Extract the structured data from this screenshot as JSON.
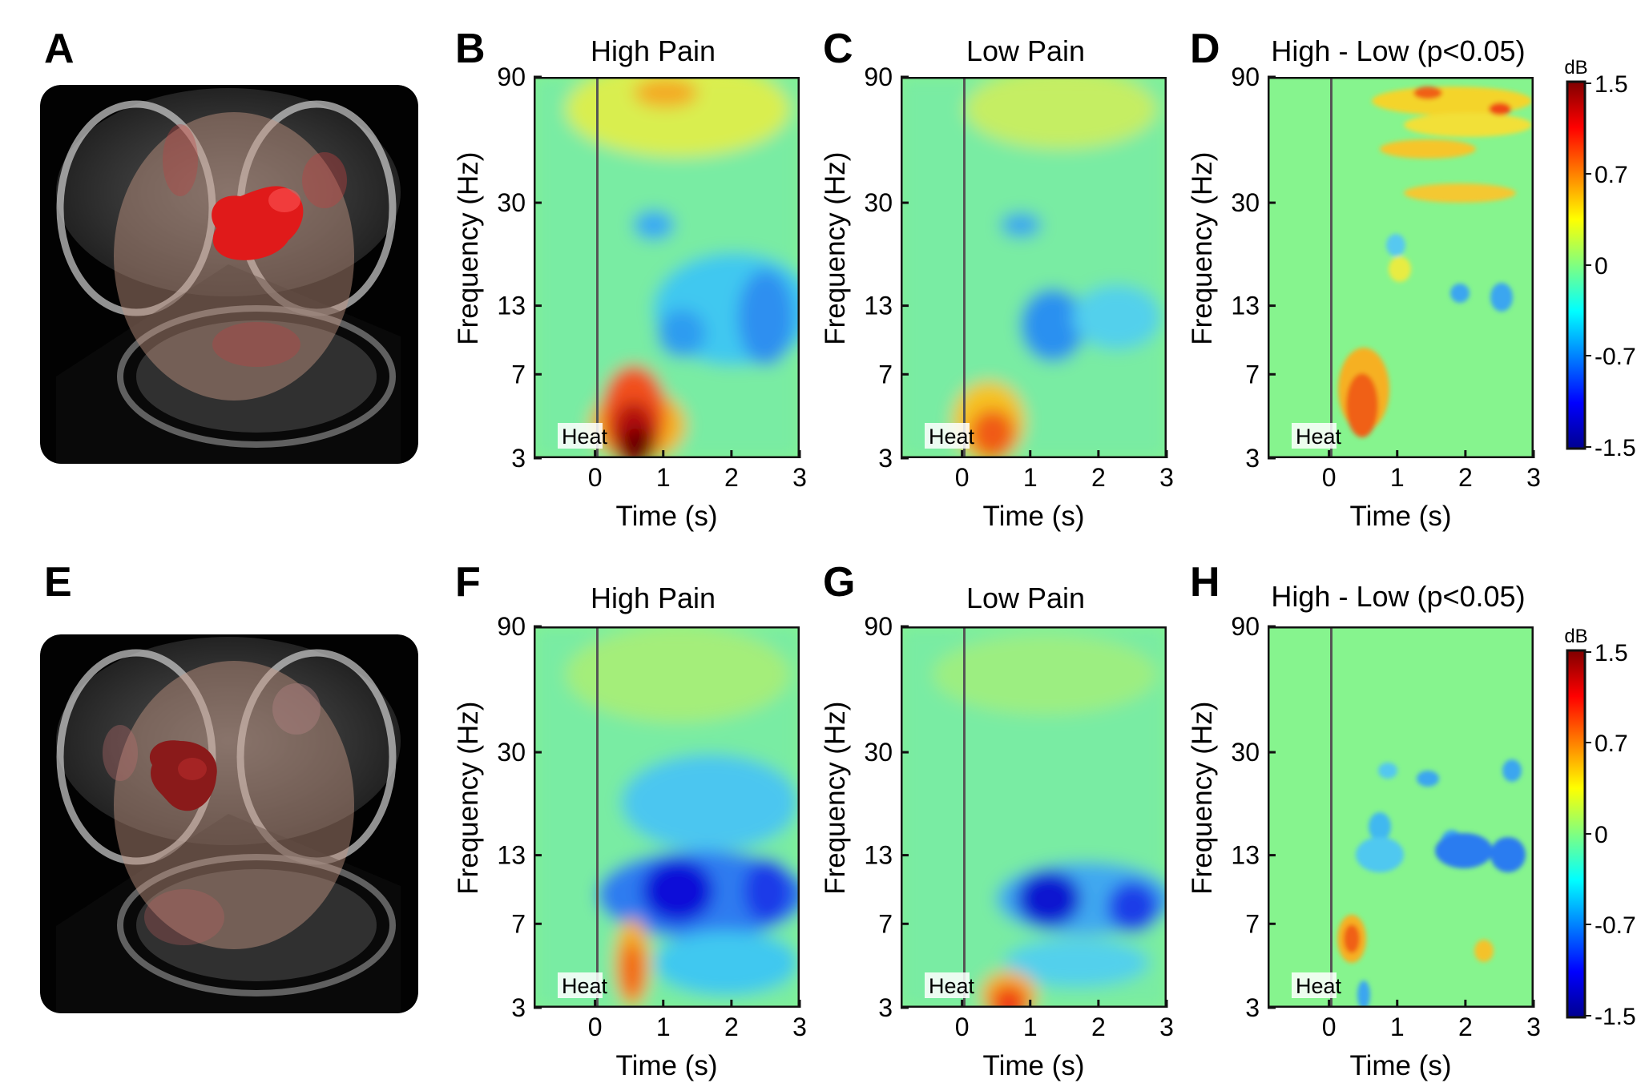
{
  "figure": {
    "rows": [
      {
        "brain_label": "A",
        "panels": [
          {
            "label": "B",
            "title": "High Pain",
            "type": "single"
          },
          {
            "label": "C",
            "title": "Low Pain",
            "type": "single"
          },
          {
            "label": "D",
            "title": "High - Low (p<0.05)",
            "type": "contrast"
          }
        ],
        "colorbar": {
          "unit": "dB",
          "ticks": [
            "1.5",
            "0.7",
            "0",
            "-0.7",
            "-1.5"
          ]
        }
      },
      {
        "brain_label": "E",
        "panels": [
          {
            "label": "F",
            "title": "High Pain",
            "type": "single"
          },
          {
            "label": "G",
            "title": "Low Pain",
            "type": "single"
          },
          {
            "label": "H",
            "title": "High - Low (p<0.05)",
            "type": "contrast"
          }
        ],
        "colorbar": {
          "unit": "dB",
          "ticks": [
            "1.5",
            "0.7",
            "0",
            "-0.7",
            "-1.5"
          ]
        }
      }
    ],
    "axes": {
      "xlabel": "Time (s)",
      "ylabel": "Frequency (Hz)",
      "xticks": [
        "0",
        "1",
        "2",
        "3"
      ],
      "yticks": [
        "90",
        "30",
        "13",
        "7",
        "3"
      ],
      "event_marker": "Heat"
    },
    "colormap": "jet"
  },
  "chart_data": [
    {
      "type": "heatmap",
      "title": "High Pain",
      "panel": "B",
      "xlabel": "Time (s)",
      "ylabel": "Frequency (Hz)",
      "xlim": [
        -0.9,
        3
      ],
      "ylim": [
        3,
        90
      ],
      "color_range_db": [
        -1.5,
        1.5
      ],
      "features": [
        {
          "desc": "strong increase",
          "t": [
            0.3,
            1.1
          ],
          "f": [
            3,
            8
          ],
          "db": 1.5
        },
        {
          "desc": "gamma increase",
          "t": [
            0.4,
            3
          ],
          "f": [
            50,
            90
          ],
          "db": 0.5
        },
        {
          "desc": "alpha/beta decrease",
          "t": [
            0.8,
            3
          ],
          "f": [
            8,
            20
          ],
          "db": -0.5
        }
      ]
    },
    {
      "type": "heatmap",
      "title": "Low Pain",
      "panel": "C",
      "xlabel": "Time (s)",
      "ylabel": "Frequency (Hz)",
      "xlim": [
        -0.9,
        3
      ],
      "ylim": [
        3,
        90
      ],
      "color_range_db": [
        -1.5,
        1.5
      ],
      "features": [
        {
          "desc": "moderate increase",
          "t": [
            0.3,
            1.1
          ],
          "f": [
            3,
            6
          ],
          "db": 0.8
        },
        {
          "desc": "alpha decrease",
          "t": [
            1.0,
            1.7
          ],
          "f": [
            8,
            15
          ],
          "db": -0.6
        }
      ]
    },
    {
      "type": "heatmap",
      "title": "High - Low (p<0.05)",
      "panel": "D",
      "xlabel": "Time (s)",
      "ylabel": "Frequency (Hz)",
      "xlim": [
        -0.9,
        3
      ],
      "ylim": [
        3,
        90
      ],
      "color_range_db": [
        -1.5,
        1.5
      ],
      "features": [
        {
          "desc": "low-frequency increase",
          "t": [
            0.3,
            1.0
          ],
          "f": [
            3,
            8
          ],
          "db": 0.8
        },
        {
          "desc": "gamma increase",
          "t": [
            0.5,
            3
          ],
          "f": [
            30,
            90
          ],
          "db": 0.7
        }
      ]
    },
    {
      "type": "heatmap",
      "title": "High Pain",
      "panel": "F",
      "xlabel": "Time (s)",
      "ylabel": "Frequency (Hz)",
      "xlim": [
        -0.9,
        3
      ],
      "ylim": [
        3,
        90
      ],
      "color_range_db": [
        -1.5,
        1.5
      ],
      "features": [
        {
          "desc": "theta increase",
          "t": [
            0.3,
            0.7
          ],
          "f": [
            3,
            7
          ],
          "db": 0.9
        },
        {
          "desc": "alpha decrease",
          "t": [
            0.5,
            3
          ],
          "f": [
            8,
            14
          ],
          "db": -1.4
        }
      ]
    },
    {
      "type": "heatmap",
      "title": "Low Pain",
      "panel": "G",
      "xlabel": "Time (s)",
      "ylabel": "Frequency (Hz)",
      "xlim": [
        -0.9,
        3
      ],
      "ylim": [
        3,
        90
      ],
      "color_range_db": [
        -1.5,
        1.5
      ],
      "features": [
        {
          "desc": "delta increase",
          "t": [
            0.5,
            1.1
          ],
          "f": [
            3,
            4
          ],
          "db": 0.9
        },
        {
          "desc": "alpha decrease",
          "t": [
            0.8,
            3
          ],
          "f": [
            8,
            13
          ],
          "db": -1.3
        }
      ]
    },
    {
      "type": "heatmap",
      "title": "High - Low (p<0.05)",
      "panel": "H",
      "xlabel": "Time (s)",
      "ylabel": "Frequency (Hz)",
      "xlim": [
        -0.9,
        3
      ],
      "ylim": [
        3,
        90
      ],
      "color_range_db": [
        -1.5,
        1.5
      ],
      "features": [
        {
          "desc": "theta increase",
          "t": [
            0.3,
            0.6
          ],
          "f": [
            4,
            7
          ],
          "db": 0.8
        },
        {
          "desc": "alpha/beta decrease",
          "t": [
            1.5,
            3
          ],
          "f": [
            10,
            15
          ],
          "db": -0.7
        }
      ]
    }
  ]
}
